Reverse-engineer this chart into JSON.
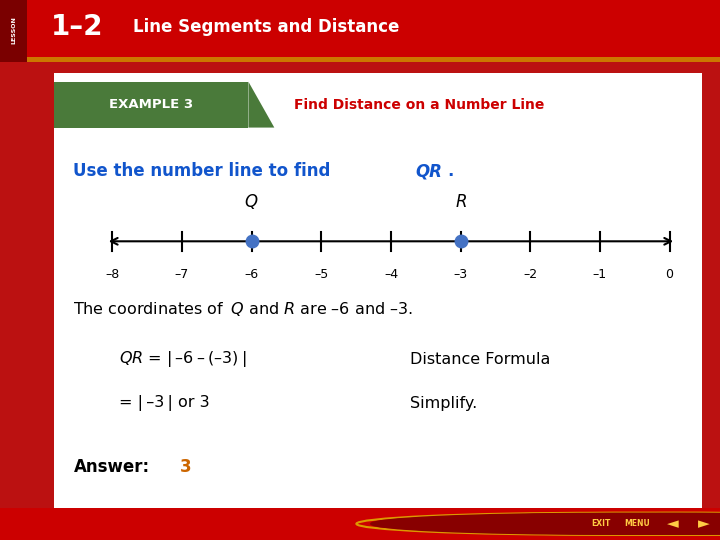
{
  "header_bg_color": "#CC0000",
  "header_text": "Line Segments and Distance",
  "header_number": "1–2",
  "lesson_label": "LESSON",
  "example_bg_color": "#4a7a3a",
  "example_label": "EXAMPLE 3",
  "example_title": "Find Distance on a Number Line",
  "example_title_color": "#CC0000",
  "body_bg_color": "#ffffff",
  "main_bg_color": "#BB1111",
  "instruction_color": "#1155cc",
  "number_line_ticks": [
    -8,
    -7,
    -6,
    -5,
    -4,
    -3,
    -2,
    -1,
    0
  ],
  "tick_labels": [
    "–8",
    "–7",
    "–6",
    "–5",
    "–4",
    "–3",
    "–2",
    "–1",
    "0"
  ],
  "point_Q": -6,
  "point_R": -3,
  "point_color": "#4472c4",
  "answer_color": "#cc6600",
  "footer_bg": "#CC0000"
}
